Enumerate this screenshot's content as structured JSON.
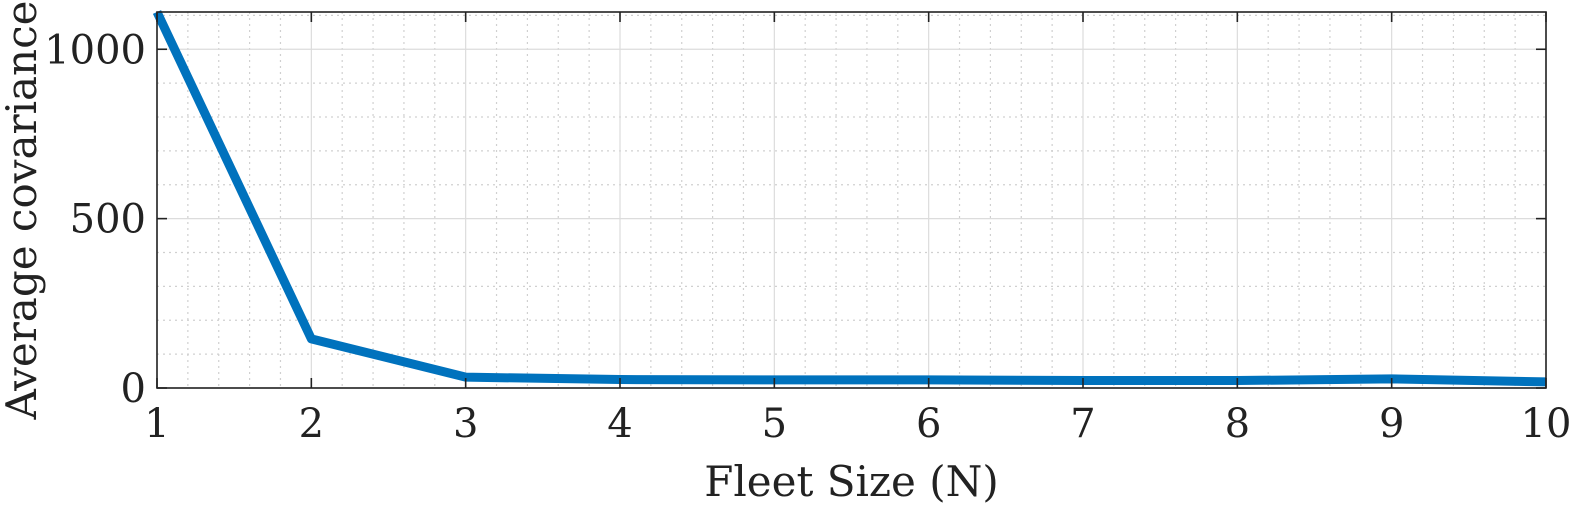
{
  "chart_data": {
    "type": "line",
    "xlabel": "Fleet Size (N)",
    "ylabel": "Average covariance",
    "x_ticks": [
      1,
      2,
      3,
      4,
      5,
      6,
      7,
      8,
      9,
      10
    ],
    "y_ticks": [
      0,
      500,
      1000
    ],
    "xlim": [
      1,
      10
    ],
    "ylim": [
      0,
      1110
    ],
    "grid": "major solid, minor dotted",
    "series": [
      {
        "x": [
          1,
          2,
          3,
          4,
          5,
          6,
          7,
          8,
          9,
          10
        ],
        "y": [
          1110,
          145,
          32,
          25,
          24,
          24,
          22,
          22,
          27,
          18
        ],
        "color": "#0072BD"
      }
    ]
  }
}
